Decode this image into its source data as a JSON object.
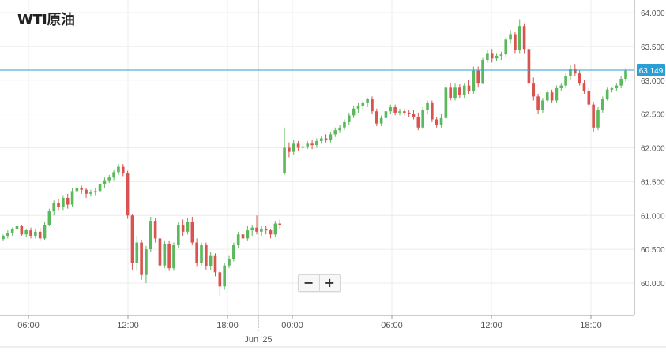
{
  "chart_data": {
    "type": "candlestick",
    "title": "WTI原油",
    "last_price_label": "63.149",
    "y_ticks": [
      "64.000",
      "63.500",
      "63.000",
      "62.500",
      "62.000",
      "61.500",
      "61.000",
      "60.500",
      "60.000"
    ],
    "ylim": [
      59.5,
      64.1
    ],
    "x_ticks": [
      "06:00",
      "12:00",
      "18:00",
      "00:00",
      "06:00",
      "12:00",
      "18:00"
    ],
    "x_subtitle": "Jun '25",
    "series": [
      {
        "values": [
          [
            60.65,
            60.72,
            60.62,
            60.7
          ],
          [
            60.7,
            60.78,
            60.66,
            60.74
          ],
          [
            60.74,
            60.82,
            60.7,
            60.8
          ],
          [
            60.8,
            60.88,
            60.76,
            60.84
          ],
          [
            60.84,
            60.86,
            60.7,
            60.72
          ],
          [
            60.72,
            60.8,
            60.68,
            60.78
          ],
          [
            60.78,
            60.82,
            60.66,
            60.7
          ],
          [
            60.7,
            60.8,
            60.66,
            60.76
          ],
          [
            60.76,
            60.82,
            60.62,
            60.66
          ],
          [
            60.66,
            60.9,
            60.64,
            60.86
          ],
          [
            60.86,
            61.1,
            60.84,
            61.06
          ],
          [
            61.06,
            61.22,
            61.0,
            61.18
          ],
          [
            61.18,
            61.24,
            61.08,
            61.12
          ],
          [
            61.12,
            61.3,
            61.08,
            61.26
          ],
          [
            61.26,
            61.32,
            61.1,
            61.16
          ],
          [
            61.16,
            61.4,
            61.12,
            61.36
          ],
          [
            61.36,
            61.46,
            61.3,
            61.4
          ],
          [
            61.4,
            61.44,
            61.32,
            61.38
          ],
          [
            61.38,
            61.4,
            61.26,
            61.32
          ],
          [
            61.32,
            61.38,
            61.28,
            61.34
          ],
          [
            61.34,
            61.4,
            61.3,
            61.36
          ],
          [
            61.36,
            61.48,
            61.34,
            61.46
          ],
          [
            61.46,
            61.56,
            61.4,
            61.52
          ],
          [
            61.52,
            61.6,
            61.48,
            61.56
          ],
          [
            61.56,
            61.68,
            61.52,
            61.64
          ],
          [
            61.64,
            61.76,
            61.6,
            61.72
          ],
          [
            61.72,
            61.76,
            61.58,
            61.62
          ],
          [
            61.62,
            61.66,
            60.95,
            61.0
          ],
          [
            61.0,
            61.02,
            60.2,
            60.3
          ],
          [
            60.3,
            60.7,
            60.18,
            60.6
          ],
          [
            60.6,
            60.64,
            60.05,
            60.12
          ],
          [
            60.12,
            60.55,
            60.0,
            60.5
          ],
          [
            60.5,
            60.98,
            60.46,
            60.92
          ],
          [
            60.92,
            60.96,
            60.6,
            60.66
          ],
          [
            60.66,
            60.7,
            60.2,
            60.26
          ],
          [
            60.26,
            60.62,
            60.22,
            60.58
          ],
          [
            60.58,
            60.62,
            60.18,
            60.22
          ],
          [
            60.22,
            60.6,
            60.18,
            60.56
          ],
          [
            60.56,
            60.9,
            60.52,
            60.86
          ],
          [
            60.86,
            60.94,
            60.7,
            60.76
          ],
          [
            60.76,
            60.96,
            60.72,
            60.9
          ],
          [
            60.9,
            60.98,
            60.56,
            60.6
          ],
          [
            60.6,
            60.66,
            60.24,
            60.3
          ],
          [
            60.3,
            60.6,
            60.26,
            60.56
          ],
          [
            60.56,
            60.6,
            60.2,
            60.25
          ],
          [
            60.25,
            60.46,
            60.2,
            60.4
          ],
          [
            60.4,
            60.44,
            60.1,
            60.16
          ],
          [
            60.16,
            60.2,
            59.8,
            59.95
          ],
          [
            59.95,
            60.3,
            59.9,
            60.26
          ],
          [
            60.26,
            60.4,
            60.22,
            60.36
          ],
          [
            60.36,
            60.6,
            60.32,
            60.56
          ],
          [
            60.56,
            60.76,
            60.52,
            60.72
          ],
          [
            60.72,
            60.8,
            60.6,
            60.66
          ],
          [
            60.66,
            60.84,
            60.62,
            60.78
          ],
          [
            60.78,
            60.86,
            60.7,
            60.82
          ],
          [
            60.82,
            61.0,
            60.72,
            60.76
          ],
          [
            60.76,
            60.84,
            60.7,
            60.8
          ],
          [
            60.8,
            60.84,
            60.72,
            60.78
          ],
          [
            60.78,
            60.8,
            60.66,
            60.72
          ],
          [
            60.72,
            60.92,
            60.68,
            60.88
          ],
          [
            60.88,
            60.94,
            60.8,
            60.86
          ],
          [
            61.62,
            62.3,
            61.6,
            62.0
          ],
          [
            62.0,
            62.08,
            61.86,
            61.94
          ],
          [
            61.94,
            62.12,
            61.9,
            62.06
          ],
          [
            62.06,
            62.1,
            61.96,
            62.0
          ],
          [
            62.0,
            62.06,
            61.94,
            62.02
          ],
          [
            62.02,
            62.1,
            61.98,
            62.06
          ],
          [
            62.06,
            62.12,
            61.98,
            62.04
          ],
          [
            62.04,
            62.14,
            62.0,
            62.1
          ],
          [
            62.1,
            62.18,
            62.06,
            62.14
          ],
          [
            62.14,
            62.2,
            62.08,
            62.12
          ],
          [
            62.12,
            62.24,
            62.08,
            62.2
          ],
          [
            62.2,
            62.3,
            62.16,
            62.26
          ],
          [
            62.26,
            62.34,
            62.22,
            62.3
          ],
          [
            62.3,
            62.42,
            62.26,
            62.38
          ],
          [
            62.38,
            62.52,
            62.34,
            62.48
          ],
          [
            62.48,
            62.62,
            62.44,
            62.58
          ],
          [
            62.58,
            62.66,
            62.52,
            62.62
          ],
          [
            62.62,
            62.7,
            62.56,
            62.66
          ],
          [
            62.66,
            62.74,
            62.6,
            62.72
          ],
          [
            62.72,
            62.76,
            62.5,
            62.54
          ],
          [
            62.54,
            62.58,
            62.32,
            62.36
          ],
          [
            62.36,
            62.48,
            62.32,
            62.44
          ],
          [
            62.44,
            62.58,
            62.4,
            62.54
          ],
          [
            62.54,
            62.64,
            62.5,
            62.6
          ],
          [
            62.6,
            62.64,
            62.48,
            62.52
          ],
          [
            62.52,
            62.58,
            62.48,
            62.54
          ],
          [
            62.54,
            62.58,
            62.48,
            62.52
          ],
          [
            62.52,
            62.56,
            62.46,
            62.5
          ],
          [
            62.5,
            62.56,
            62.42,
            62.46
          ],
          [
            62.46,
            62.52,
            62.26,
            62.3
          ],
          [
            62.3,
            62.6,
            62.28,
            62.56
          ],
          [
            62.56,
            62.7,
            62.5,
            62.66
          ],
          [
            62.66,
            62.7,
            62.38,
            62.42
          ],
          [
            62.42,
            62.46,
            62.3,
            62.34
          ],
          [
            62.34,
            62.5,
            62.3,
            62.44
          ],
          [
            62.44,
            62.94,
            62.42,
            62.9
          ],
          [
            62.9,
            62.96,
            62.7,
            62.74
          ],
          [
            62.74,
            62.96,
            62.7,
            62.9
          ],
          [
            62.9,
            62.94,
            62.74,
            62.78
          ],
          [
            62.78,
            62.96,
            62.74,
            62.92
          ],
          [
            62.92,
            63.0,
            62.8,
            62.84
          ],
          [
            62.84,
            63.2,
            62.8,
            63.14
          ],
          [
            63.14,
            63.2,
            62.9,
            62.96
          ],
          [
            62.96,
            63.34,
            62.94,
            63.3
          ],
          [
            63.3,
            63.44,
            63.26,
            63.4
          ],
          [
            63.4,
            63.46,
            63.26,
            63.32
          ],
          [
            63.32,
            63.4,
            63.28,
            63.36
          ],
          [
            63.36,
            63.42,
            63.3,
            63.38
          ],
          [
            63.38,
            63.64,
            63.34,
            63.6
          ],
          [
            63.6,
            63.74,
            63.54,
            63.68
          ],
          [
            63.68,
            63.72,
            63.4,
            63.44
          ],
          [
            63.44,
            63.9,
            63.4,
            63.8
          ],
          [
            63.8,
            63.84,
            63.4,
            63.46
          ],
          [
            63.46,
            63.5,
            62.9,
            62.96
          ],
          [
            62.96,
            63.04,
            62.7,
            62.76
          ],
          [
            62.76,
            62.8,
            62.5,
            62.56
          ],
          [
            62.56,
            62.74,
            62.52,
            62.7
          ],
          [
            62.7,
            62.86,
            62.66,
            62.82
          ],
          [
            62.82,
            62.86,
            62.66,
            62.7
          ],
          [
            62.7,
            62.92,
            62.66,
            62.88
          ],
          [
            62.88,
            62.96,
            62.84,
            62.92
          ],
          [
            62.92,
            63.1,
            62.88,
            63.06
          ],
          [
            63.06,
            63.22,
            63.0,
            63.16
          ],
          [
            63.16,
            63.24,
            63.06,
            63.1
          ],
          [
            63.1,
            63.14,
            62.92,
            62.96
          ],
          [
            62.96,
            63.0,
            62.8,
            62.84
          ],
          [
            62.84,
            62.88,
            62.6,
            62.64
          ],
          [
            62.64,
            62.68,
            62.24,
            62.3
          ],
          [
            62.3,
            62.6,
            62.26,
            62.56
          ],
          [
            62.56,
            62.76,
            62.52,
            62.72
          ],
          [
            62.72,
            62.9,
            62.7,
            62.86
          ],
          [
            62.86,
            62.9,
            62.82,
            62.88
          ],
          [
            62.88,
            62.96,
            62.84,
            62.92
          ],
          [
            62.92,
            63.06,
            62.88,
            63.02
          ],
          [
            63.02,
            63.18,
            62.98,
            63.14
          ]
        ]
      }
    ]
  }
}
